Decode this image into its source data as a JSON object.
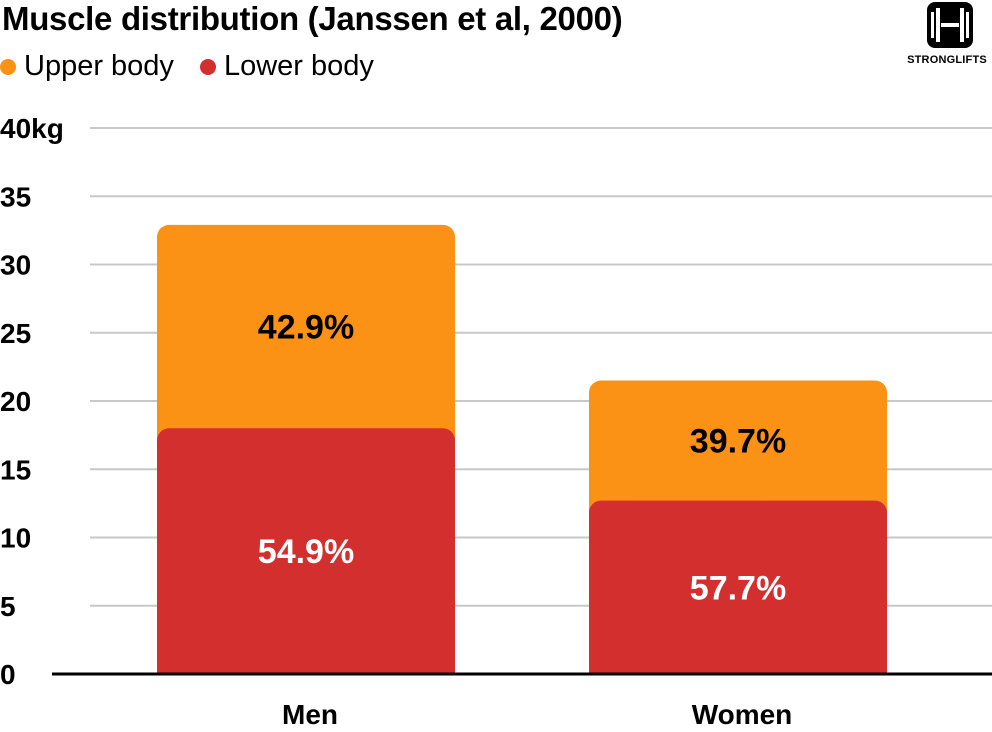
{
  "chart_data": {
    "type": "bar",
    "stacked": true,
    "title": "Muscle distribution (Janssen et al, 2000)",
    "categories": [
      "Men",
      "Women"
    ],
    "series": [
      {
        "name": "Lower body",
        "values": [
          18.0,
          12.7
        ],
        "labels": [
          "54.9%",
          "57.7%"
        ],
        "color": "#d32f2f",
        "label_color": "#ffffff"
      },
      {
        "name": "Upper body",
        "values": [
          14.9,
          8.8
        ],
        "labels": [
          "42.9%",
          "39.7%"
        ],
        "color": "#fb9216",
        "label_color": "#000000"
      }
    ],
    "legend_order": [
      "Upper body",
      "Lower body"
    ],
    "legend_placement": "top-left",
    "ylim": [
      0,
      40
    ],
    "yticks": [
      0,
      5,
      10,
      15,
      20,
      25,
      30,
      35,
      40
    ],
    "ytick_labels": [
      "0",
      "5",
      "10",
      "15",
      "20",
      "25",
      "30",
      "35",
      "40kg"
    ],
    "grid": true
  },
  "logo": {
    "text": "STRONGLIFTS",
    "icon": "barbell-icon"
  }
}
